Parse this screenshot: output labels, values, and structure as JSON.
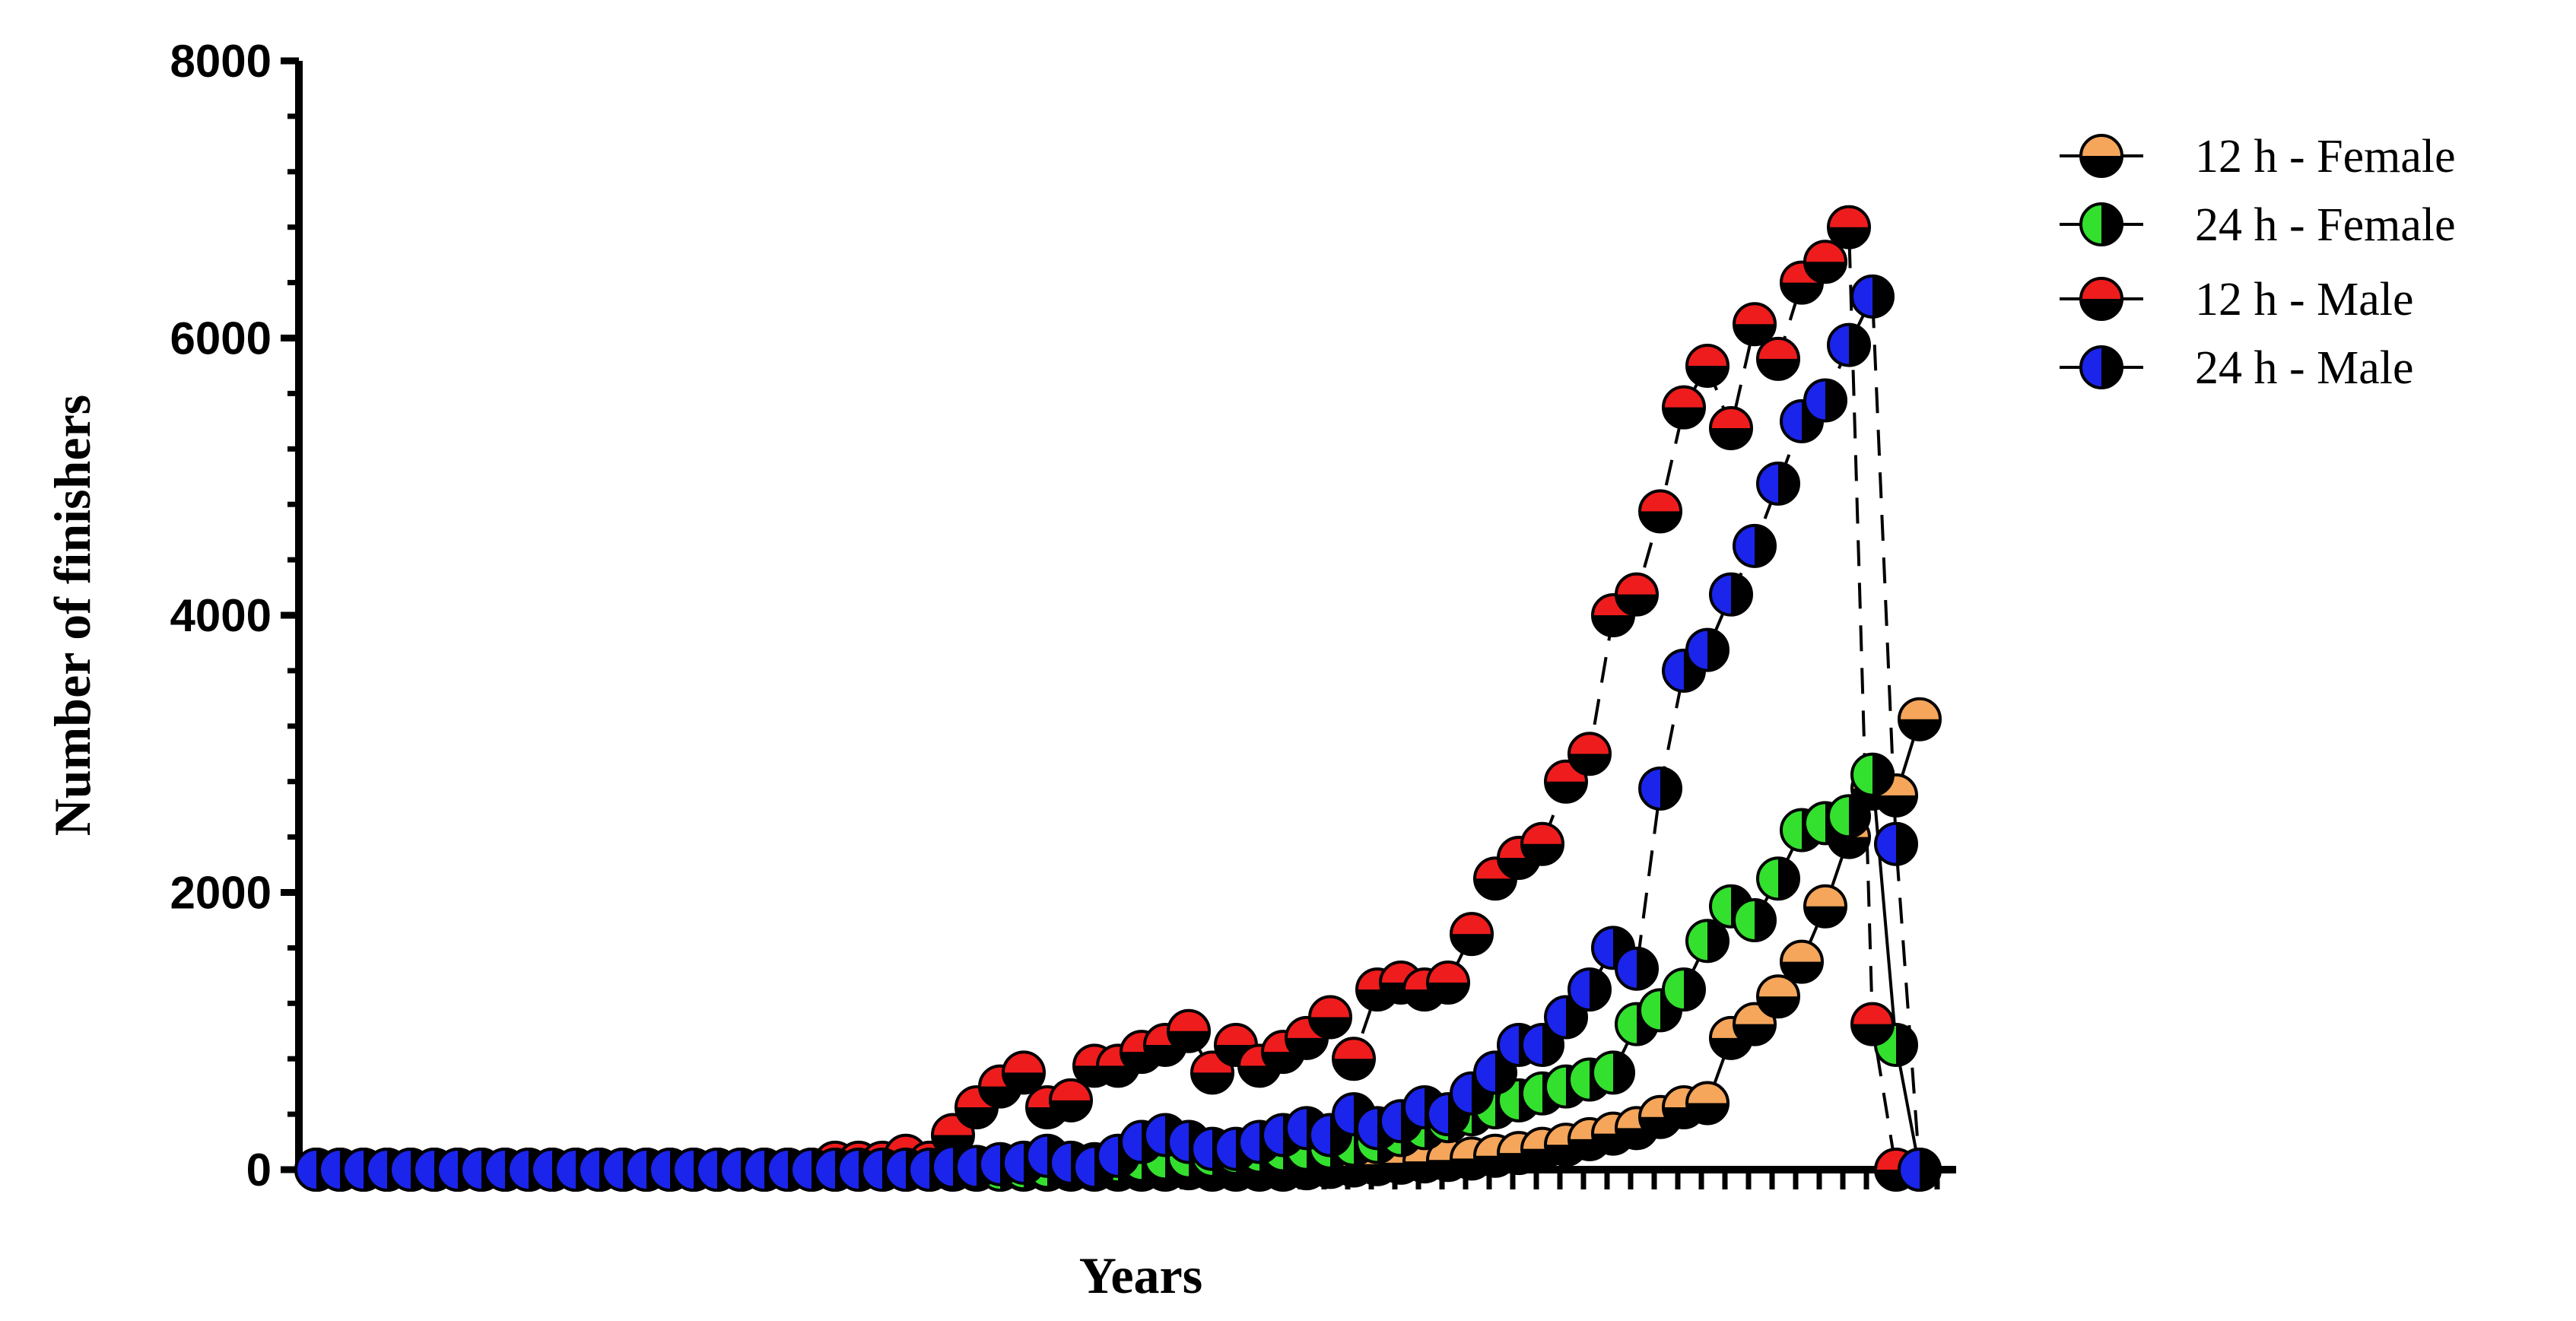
{
  "chart_data": {
    "type": "line",
    "xlabel": "Years",
    "ylabel": "Number of finishers",
    "ylim": [
      0,
      8000
    ],
    "yticks": [
      "0",
      "2000",
      "4000",
      "6000",
      "8000"
    ],
    "x_tick_count": 72,
    "x_labels_shown": false,
    "legend_position": "top-right",
    "series": [
      {
        "name": "12 h - Female",
        "color": "#F5A65B",
        "line_style": "solid",
        "x": [
          0,
          1,
          2,
          3,
          4,
          5,
          6,
          7,
          8,
          9,
          10,
          11,
          12,
          13,
          14,
          15,
          16,
          17,
          18,
          19,
          20,
          21,
          22,
          23,
          24,
          25,
          26,
          27,
          28,
          29,
          30,
          31,
          32,
          33,
          34,
          35,
          36,
          37,
          38,
          39,
          40,
          41,
          42,
          43,
          44,
          45,
          46,
          47,
          48,
          49,
          50,
          51,
          52,
          53,
          54,
          55,
          56,
          57,
          58,
          59,
          60,
          61,
          62,
          63,
          64,
          65,
          66,
          67,
          68
        ],
        "y": [
          0,
          0,
          0,
          0,
          0,
          0,
          0,
          0,
          0,
          0,
          0,
          0,
          0,
          0,
          0,
          0,
          0,
          0,
          0,
          0,
          0,
          0,
          0,
          0,
          0,
          0,
          0,
          0,
          0,
          0,
          0,
          0,
          0,
          0,
          0,
          0,
          0,
          10,
          0,
          0,
          0,
          0,
          10,
          20,
          30,
          40,
          50,
          60,
          70,
          80,
          100,
          120,
          150,
          180,
          220,
          260,
          300,
          380,
          450,
          480,
          950,
          1050,
          1250,
          1500,
          1900,
          2400,
          2750,
          2700,
          3250
        ]
      },
      {
        "name": "24 h - Female",
        "color": "#33E02E",
        "line_style": "solid",
        "x": [
          0,
          1,
          2,
          3,
          4,
          5,
          6,
          7,
          8,
          9,
          10,
          11,
          12,
          13,
          14,
          15,
          16,
          17,
          18,
          19,
          20,
          21,
          22,
          23,
          24,
          25,
          26,
          27,
          28,
          29,
          30,
          31,
          32,
          33,
          34,
          35,
          36,
          37,
          38,
          39,
          40,
          41,
          42,
          43,
          44,
          45,
          46,
          47,
          48,
          49,
          50,
          51,
          52,
          53,
          54,
          55,
          56,
          57,
          58,
          59,
          60,
          61,
          62,
          63,
          64,
          65,
          66,
          67,
          68
        ],
        "y": [
          0,
          0,
          0,
          0,
          0,
          0,
          0,
          0,
          0,
          0,
          0,
          0,
          0,
          0,
          0,
          0,
          0,
          0,
          0,
          0,
          0,
          0,
          0,
          0,
          0,
          0,
          0,
          0,
          0,
          0,
          10,
          20,
          30,
          40,
          60,
          70,
          80,
          90,
          100,
          120,
          130,
          140,
          150,
          160,
          180,
          200,
          250,
          300,
          350,
          400,
          450,
          500,
          550,
          600,
          650,
          700,
          1050,
          1150,
          1300,
          1650,
          1900,
          1800,
          2100,
          2450,
          2500,
          2550,
          2850,
          900,
          0
        ]
      },
      {
        "name": "12 h - Male",
        "color": "#EE1C1C",
        "line_style": "dashed",
        "x": [
          0,
          1,
          2,
          3,
          4,
          5,
          6,
          7,
          8,
          9,
          10,
          11,
          12,
          13,
          14,
          15,
          16,
          17,
          18,
          19,
          20,
          21,
          22,
          23,
          24,
          25,
          26,
          27,
          28,
          29,
          30,
          31,
          32,
          33,
          34,
          35,
          36,
          37,
          38,
          39,
          40,
          41,
          42,
          43,
          44,
          45,
          46,
          47,
          48,
          49,
          50,
          51,
          52,
          53,
          54,
          55,
          56,
          57,
          58,
          59,
          60,
          61,
          62,
          63,
          64,
          65,
          66,
          67,
          68
        ],
        "y": [
          0,
          0,
          0,
          0,
          0,
          0,
          0,
          0,
          0,
          0,
          0,
          0,
          0,
          0,
          0,
          0,
          0,
          0,
          0,
          0,
          0,
          0,
          50,
          50,
          50,
          100,
          50,
          250,
          450,
          600,
          700,
          450,
          500,
          750,
          750,
          850,
          900,
          1000,
          700,
          900,
          750,
          850,
          950,
          1100,
          800,
          1300,
          1350,
          1300,
          1350,
          1700,
          2100,
          2250,
          2350,
          2800,
          3000,
          4000,
          4150,
          4750,
          5500,
          5800,
          5350,
          6100,
          5850,
          6400,
          6550,
          6800,
          1050,
          0,
          0
        ]
      },
      {
        "name": "24 h - Male",
        "color": "#1A24EA",
        "line_style": "dashed",
        "x": [
          0,
          1,
          2,
          3,
          4,
          5,
          6,
          7,
          8,
          9,
          10,
          11,
          12,
          13,
          14,
          15,
          16,
          17,
          18,
          19,
          20,
          21,
          22,
          23,
          24,
          25,
          26,
          27,
          28,
          29,
          30,
          31,
          32,
          33,
          34,
          35,
          36,
          37,
          38,
          39,
          40,
          41,
          42,
          43,
          44,
          45,
          46,
          47,
          48,
          49,
          50,
          51,
          52,
          53,
          54,
          55,
          56,
          57,
          58,
          59,
          60,
          61,
          62,
          63,
          64,
          65,
          66,
          67,
          68
        ],
        "y": [
          0,
          0,
          0,
          0,
          0,
          0,
          0,
          0,
          0,
          0,
          0,
          0,
          0,
          0,
          0,
          0,
          0,
          0,
          0,
          0,
          0,
          0,
          0,
          0,
          0,
          0,
          0,
          20,
          20,
          40,
          50,
          100,
          50,
          20,
          100,
          200,
          250,
          200,
          150,
          150,
          200,
          250,
          300,
          250,
          400,
          300,
          350,
          450,
          400,
          550,
          700,
          900,
          900,
          1100,
          1300,
          1600,
          1450,
          2750,
          3600,
          3750,
          4150,
          4500,
          4950,
          5400,
          5550,
          5950,
          6300,
          2350,
          0
        ]
      }
    ]
  }
}
